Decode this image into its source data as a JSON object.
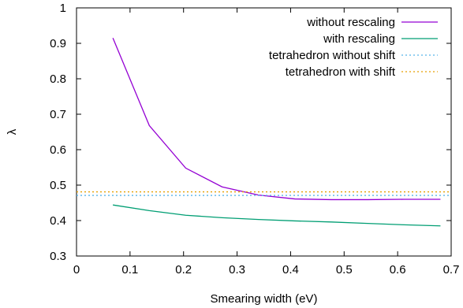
{
  "chart_data": {
    "type": "line",
    "title": "",
    "xlabel": "Smearing width (eV)",
    "ylabel": "λ",
    "xlim": [
      0,
      0.7
    ],
    "ylim": [
      0.3,
      1
    ],
    "xticks": [
      0,
      0.1,
      0.2,
      0.3,
      0.4,
      0.5,
      0.6,
      0.7
    ],
    "xtick_labels": [
      "0",
      "0.1",
      "0.2",
      "0.3",
      "0.4",
      "0.5",
      "0.6",
      "0.7"
    ],
    "yticks": [
      0.3,
      0.4,
      0.5,
      0.6,
      0.7,
      0.8,
      0.9,
      1
    ],
    "ytick_labels": [
      "0.3",
      "0.4",
      "0.5",
      "0.6",
      "0.7",
      "0.8",
      "0.9",
      "1"
    ],
    "grid": false,
    "legend_position": "top-right",
    "series": [
      {
        "name": "without rescaling",
        "color": "#9400d3",
        "style": "solid",
        "x": [
          0.068,
          0.136,
          0.204,
          0.272,
          0.34,
          0.408,
          0.476,
          0.544,
          0.612,
          0.68
        ],
        "y": [
          0.915,
          0.668,
          0.548,
          0.495,
          0.472,
          0.461,
          0.459,
          0.459,
          0.46,
          0.46
        ]
      },
      {
        "name": "with rescaling",
        "color": "#009e73",
        "style": "solid",
        "x": [
          0.068,
          0.136,
          0.204,
          0.272,
          0.34,
          0.408,
          0.476,
          0.544,
          0.612,
          0.68
        ],
        "y": [
          0.444,
          0.428,
          0.415,
          0.408,
          0.403,
          0.399,
          0.396,
          0.392,
          0.388,
          0.385
        ]
      },
      {
        "name": "tetrahedron without shift",
        "color": "#56b4e9",
        "style": "dotted",
        "x": [
          0,
          0.7
        ],
        "y": [
          0.471,
          0.471
        ]
      },
      {
        "name": "tetrahedron with shift",
        "color": "#e69f00",
        "style": "dotted",
        "x": [
          0,
          0.7
        ],
        "y": [
          0.481,
          0.481
        ]
      }
    ]
  }
}
